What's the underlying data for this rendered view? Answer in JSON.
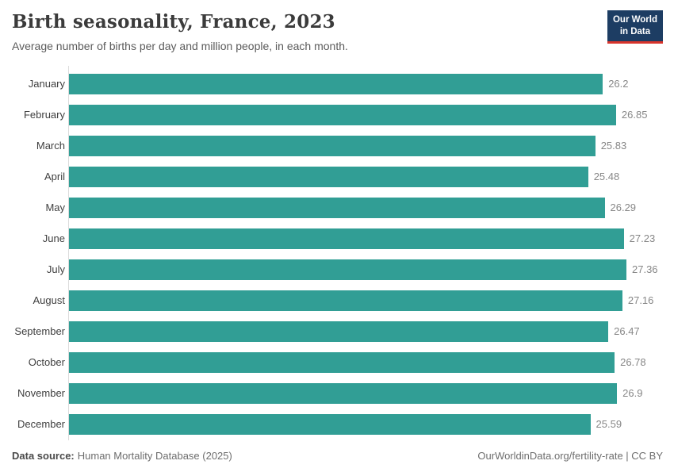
{
  "header": {
    "title": "Birth seasonality, France, 2023",
    "subtitle": "Average number of births per day and million people, in each month.",
    "logo": {
      "line1": "Our World",
      "line2": "in Data"
    }
  },
  "chart_data": {
    "type": "bar",
    "orientation": "horizontal",
    "title": "Birth seasonality, France, 2023",
    "subtitle": "Average number of births per day and million people, in each month.",
    "categories": [
      "January",
      "February",
      "March",
      "April",
      "May",
      "June",
      "July",
      "August",
      "September",
      "October",
      "November",
      "December"
    ],
    "values": [
      26.2,
      26.85,
      25.83,
      25.48,
      26.29,
      27.23,
      27.36,
      27.16,
      26.47,
      26.78,
      26.9,
      25.59
    ],
    "value_labels": [
      "26.2",
      "26.85",
      "25.83",
      "25.48",
      "26.29",
      "27.23",
      "27.36",
      "27.16",
      "26.47",
      "26.78",
      "26.9",
      "25.59"
    ],
    "xlabel": "",
    "ylabel": "",
    "xlim": [
      0,
      27.36
    ],
    "grid": false,
    "legend": "none",
    "bar_color": "#319e95"
  },
  "footer": {
    "source_label": "Data source:",
    "source_value": "Human Mortality Database (2025)",
    "link_text": "OurWorldinData.org/fertility-rate | CC BY"
  },
  "colors": {
    "bar": "#319e95",
    "logo_bg": "#1d3d63",
    "logo_accent": "#d8342c",
    "title_text": "#3b3b3b",
    "subtitle_text": "#5b5b5b",
    "value_text": "#878787",
    "axis_line": "#dcdcdc"
  }
}
